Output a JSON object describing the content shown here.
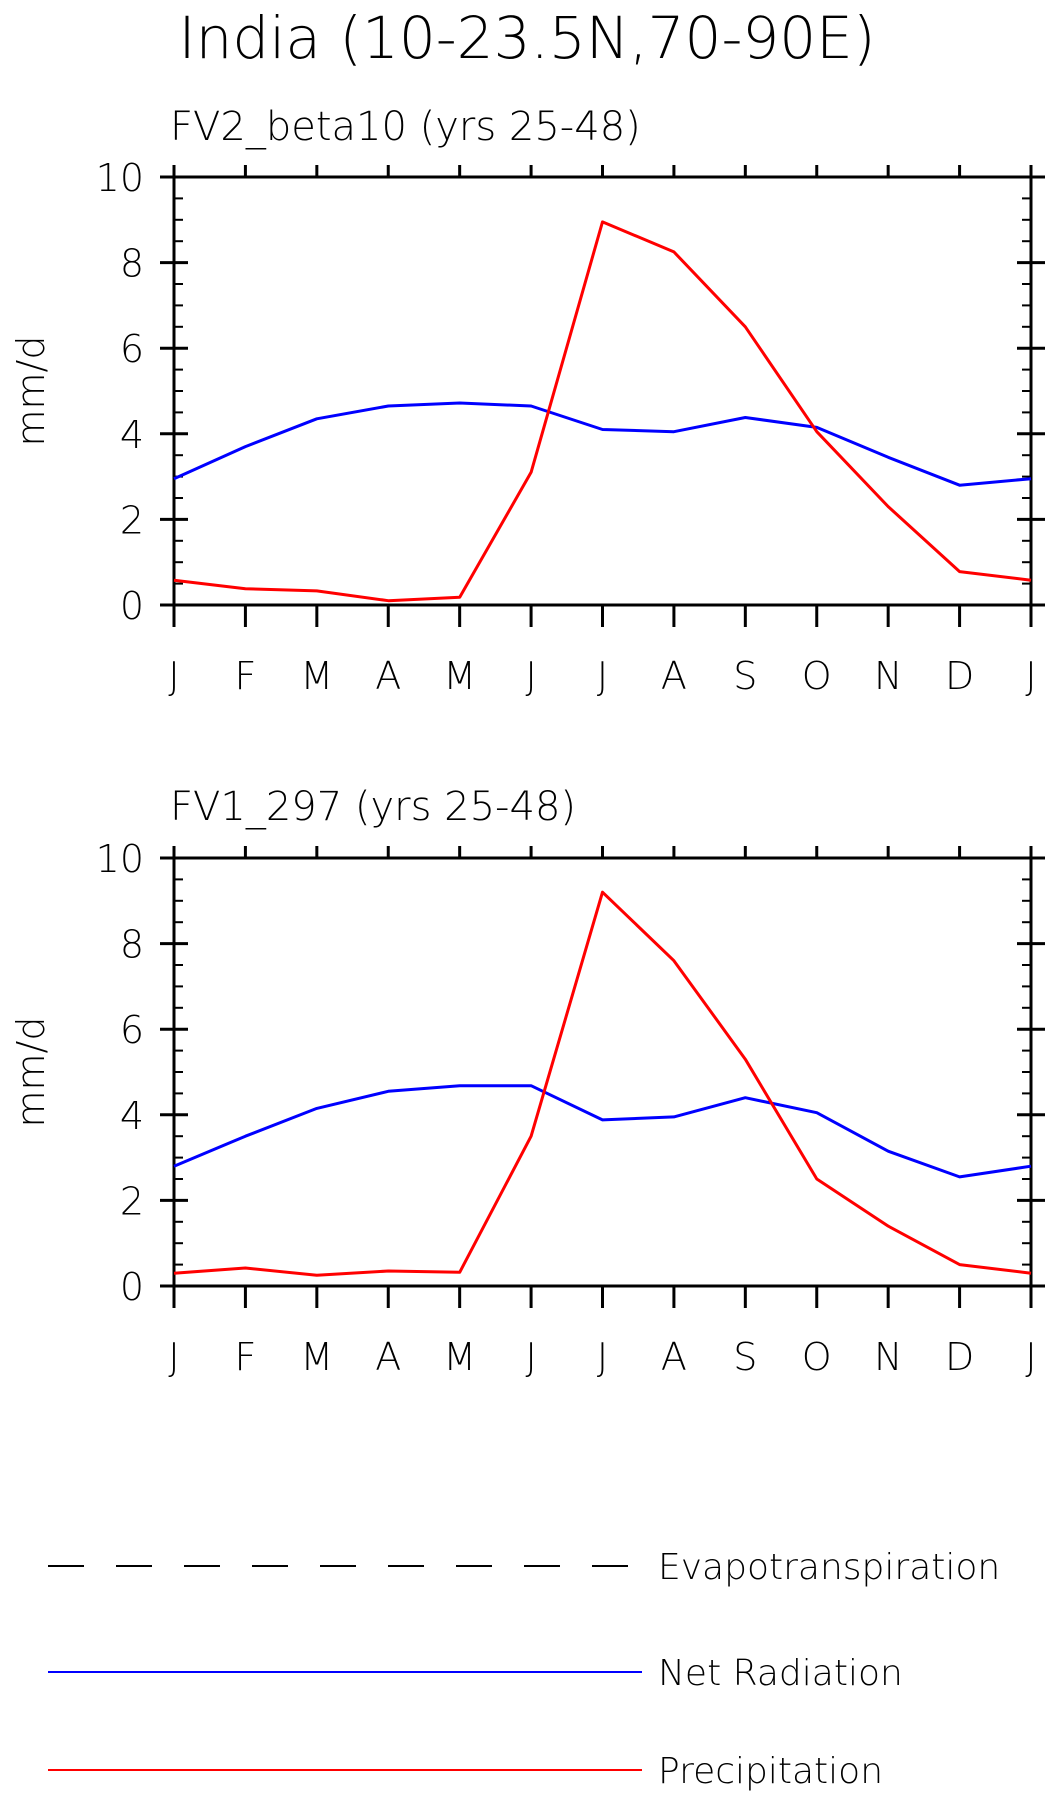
{
  "title": "India (10-23.5N,70-90E)",
  "legend": [
    {
      "name": "Evapotranspiration",
      "color": "#000000",
      "dash": true
    },
    {
      "name": "Net Radiation",
      "color": "#0000ff",
      "dash": false
    },
    {
      "name": "Precipitation",
      "color": "#ff0000",
      "dash": false
    }
  ],
  "chart_data": [
    {
      "type": "line",
      "title": "FV2_beta10 (yrs 25-48)",
      "ylabel": "mm/d",
      "xlabel": "",
      "categories": [
        "J",
        "F",
        "M",
        "A",
        "M",
        "J",
        "J",
        "A",
        "S",
        "O",
        "N",
        "D",
        "J"
      ],
      "ylim": [
        0,
        10
      ],
      "yticks": [
        0,
        2,
        4,
        6,
        8,
        10
      ],
      "series": [
        {
          "name": "Net Radiation",
          "color": "#0000ff",
          "values": [
            2.95,
            3.7,
            4.35,
            4.65,
            4.72,
            4.65,
            4.1,
            4.05,
            4.38,
            4.15,
            3.45,
            2.8,
            2.95
          ]
        },
        {
          "name": "Precipitation",
          "color": "#ff0000",
          "values": [
            0.58,
            0.38,
            0.33,
            0.1,
            0.18,
            3.1,
            8.95,
            8.25,
            6.5,
            4.05,
            2.3,
            0.78,
            0.58
          ]
        }
      ]
    },
    {
      "type": "line",
      "title": "FV1_297 (yrs 25-48)",
      "ylabel": "mm/d",
      "xlabel": "",
      "categories": [
        "J",
        "F",
        "M",
        "A",
        "M",
        "J",
        "J",
        "A",
        "S",
        "O",
        "N",
        "D",
        "J"
      ],
      "ylim": [
        0,
        10
      ],
      "yticks": [
        0,
        2,
        4,
        6,
        8,
        10
      ],
      "series": [
        {
          "name": "Net Radiation",
          "color": "#0000ff",
          "values": [
            2.8,
            3.5,
            4.15,
            4.55,
            4.68,
            4.68,
            3.88,
            3.95,
            4.4,
            4.05,
            3.15,
            2.55,
            2.8
          ]
        },
        {
          "name": "Precipitation",
          "color": "#ff0000",
          "values": [
            0.3,
            0.42,
            0.25,
            0.35,
            0.32,
            3.5,
            9.2,
            7.6,
            5.3,
            2.5,
            1.4,
            0.5,
            0.3
          ]
        }
      ]
    }
  ]
}
